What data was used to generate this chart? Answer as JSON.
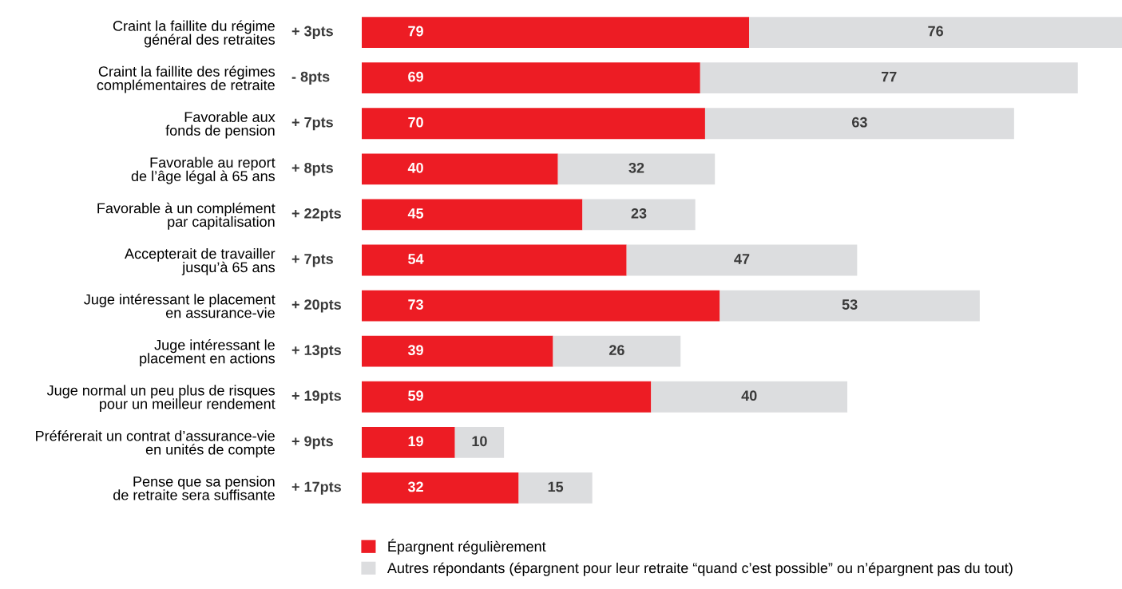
{
  "chart_data": {
    "type": "bar",
    "orientation": "horizontal",
    "stacked": true,
    "categories": [
      "Craint la faillite du régime\ngénéral des retraites",
      "Craint la faillite des régimes\ncomplémentaires de retraite",
      "Favorable aux\nfonds de pension",
      "Favorable au report\nde l’âge légal à 65 ans",
      "Favorable à un complément\npar capitalisation",
      "Accepterait de travailler\njusqu’à 65 ans",
      "Juge intéressant le placement\nen assurance-vie",
      "Juge intéressant le\nplacement en actions",
      "Juge normal un peu plus de risques\npour un meilleur rendement",
      "Préférerait un contrat d’assurance-vie\nen unités de compte",
      "Pense que sa pension\nde retraite sera suffisante"
    ],
    "series": [
      {
        "name": "Épargnent régulièrement",
        "color": "#ed1c24",
        "values": [
          79,
          69,
          70,
          40,
          45,
          54,
          73,
          39,
          59,
          19,
          32
        ]
      },
      {
        "name": "Autres répondants (épargnent pour leur retraite “quand c’est possible” ou n’épargnent pas du tout)",
        "color": "#dcdddf",
        "values": [
          76,
          77,
          63,
          32,
          23,
          47,
          53,
          26,
          40,
          10,
          15
        ]
      }
    ],
    "annotations": [
      "+ 3pts",
      "- 8pts",
      "+ 7pts",
      "+ 8pts",
      "+ 22pts",
      "+ 7pts",
      "+ 20pts",
      "+ 13pts",
      "+ 19pts",
      "+ 9pts",
      "+ 17pts"
    ],
    "xlim": [
      0,
      155
    ],
    "data_labels": true,
    "legend": "bottom",
    "grid": false,
    "tick_labels": "y"
  }
}
